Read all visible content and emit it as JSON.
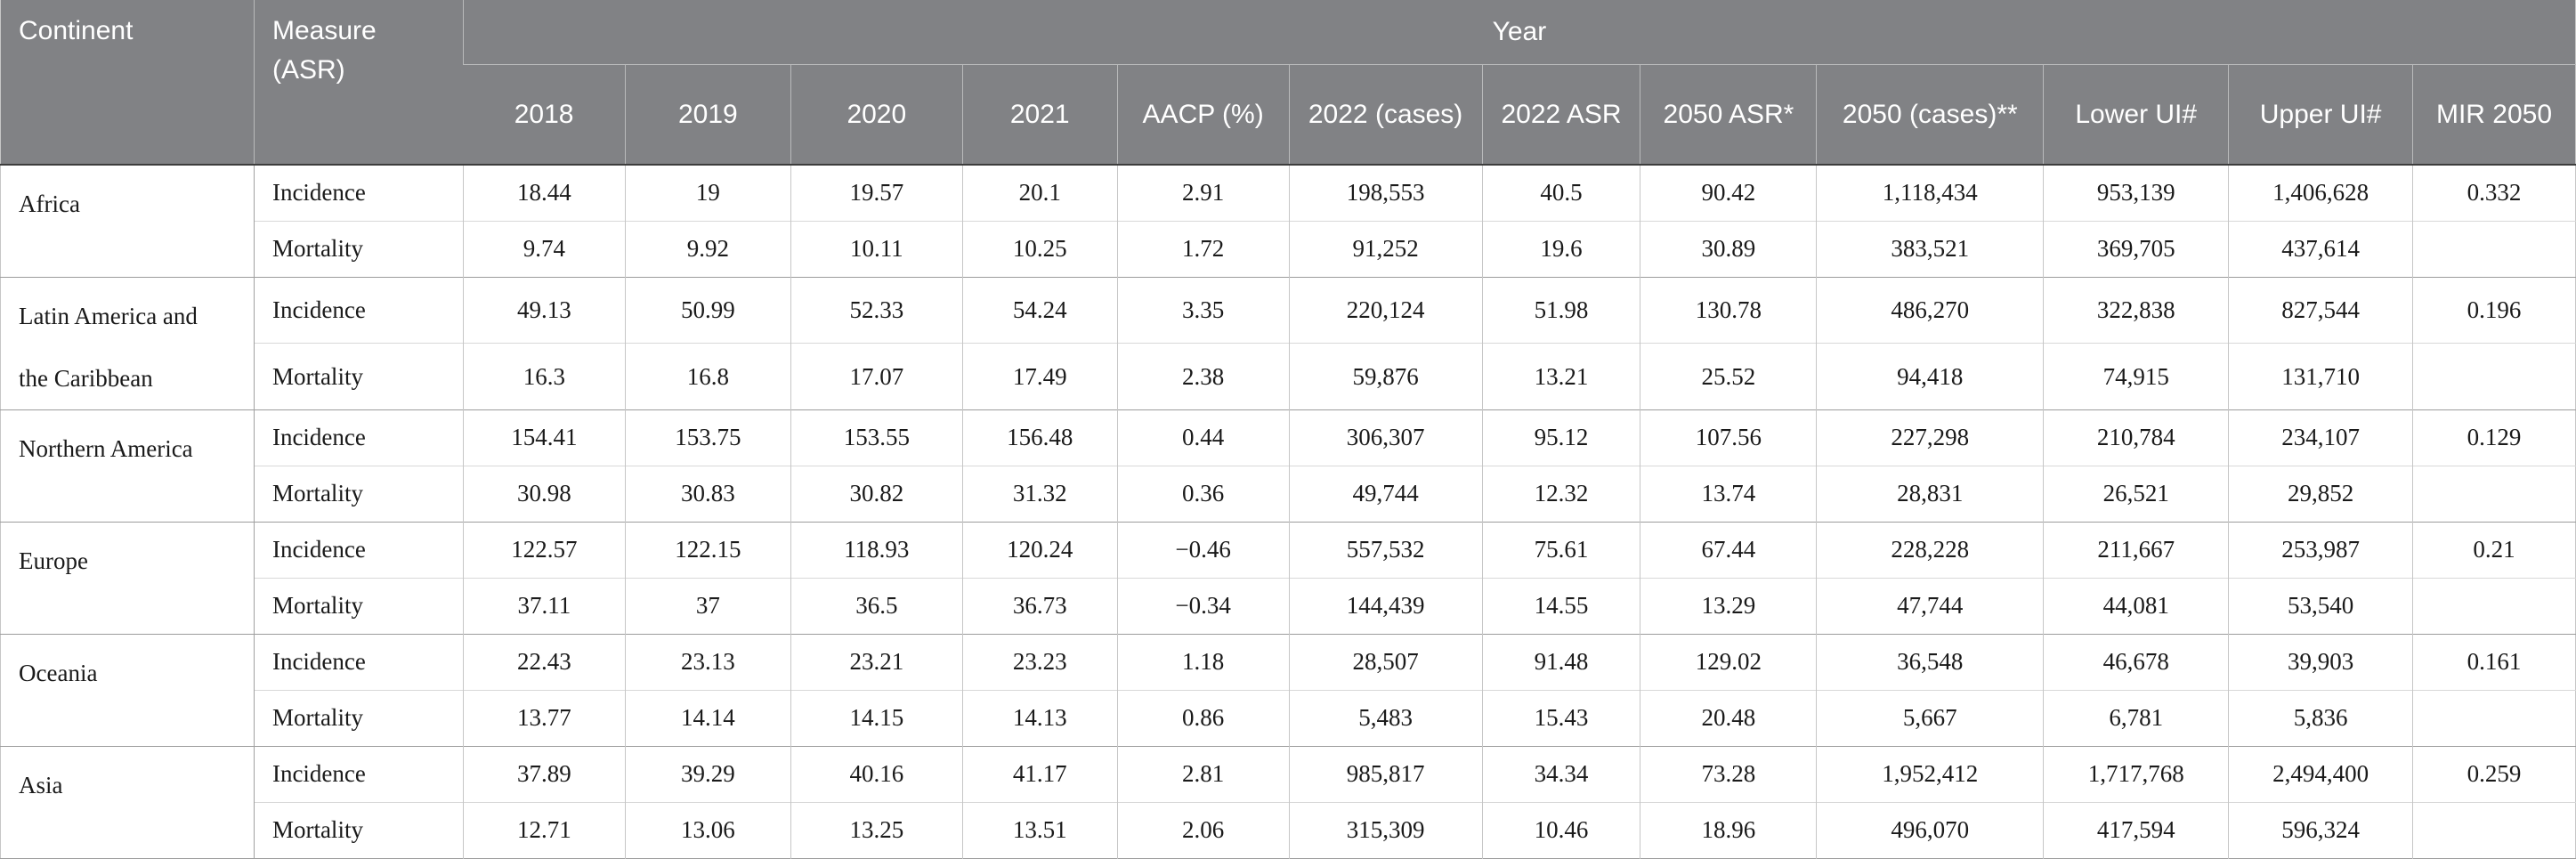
{
  "colors": {
    "header_bg": "#818285",
    "header_text": "#ffffff",
    "header_divider": "#b9babb",
    "header_bottom": "#3d3d3d",
    "body_text": "#1a1a1a",
    "grid_line": "#c6c6c6",
    "inner_line": "#d8d8d8",
    "group_line": "#9c9c9c",
    "strong_divider": "#a0a0a0"
  },
  "table": {
    "header": {
      "continent": "Continent",
      "measure": "Measure (ASR)",
      "year": "Year",
      "year_columns": [
        "2018",
        "2019",
        "2020",
        "2021",
        "AACP (%)",
        "2022 (cases)",
        "2022 ASR",
        "2050 ASR*",
        "2050 (cases)**",
        "Lower UI#",
        "Upper UI#",
        "MIR 2050"
      ]
    },
    "groups": [
      {
        "continent": "Africa",
        "rows": [
          {
            "measure": "Incidence",
            "values": [
              "18.44",
              "19",
              "19.57",
              "20.1",
              "2.91",
              "198,553",
              "40.5",
              "90.42",
              "1,118,434",
              "953,139",
              "1,406,628",
              "0.332"
            ]
          },
          {
            "measure": "Mortality",
            "values": [
              "9.74",
              "9.92",
              "10.11",
              "10.25",
              "1.72",
              "91,252",
              "19.6",
              "30.89",
              "383,521",
              "369,705",
              "437,614",
              ""
            ]
          }
        ]
      },
      {
        "continent": "Latin America and the Caribbean",
        "rows": [
          {
            "measure": "Incidence",
            "values": [
              "49.13",
              "50.99",
              "52.33",
              "54.24",
              "3.35",
              "220,124",
              "51.98",
              "130.78",
              "486,270",
              "322,838",
              "827,544",
              "0.196"
            ]
          },
          {
            "measure": "Mortality",
            "values": [
              "16.3",
              "16.8",
              "17.07",
              "17.49",
              "2.38",
              "59,876",
              "13.21",
              "25.52",
              "94,418",
              "74,915",
              "131,710",
              ""
            ]
          }
        ]
      },
      {
        "continent": "Northern America",
        "rows": [
          {
            "measure": "Incidence",
            "values": [
              "154.41",
              "153.75",
              "153.55",
              "156.48",
              "0.44",
              "306,307",
              "95.12",
              "107.56",
              "227,298",
              "210,784",
              "234,107",
              "0.129"
            ]
          },
          {
            "measure": "Mortality",
            "values": [
              "30.98",
              "30.83",
              "30.82",
              "31.32",
              "0.36",
              "49,744",
              "12.32",
              "13.74",
              "28,831",
              "26,521",
              "29,852",
              ""
            ]
          }
        ]
      },
      {
        "continent": "Europe",
        "rows": [
          {
            "measure": "Incidence",
            "values": [
              "122.57",
              "122.15",
              "118.93",
              "120.24",
              "−0.46",
              "557,532",
              "75.61",
              "67.44",
              "228,228",
              "211,667",
              "253,987",
              "0.21"
            ]
          },
          {
            "measure": "Mortality",
            "values": [
              "37.11",
              "37",
              "36.5",
              "36.73",
              "−0.34",
              "144,439",
              "14.55",
              "13.29",
              "47,744",
              "44,081",
              "53,540",
              ""
            ]
          }
        ]
      },
      {
        "continent": "Oceania",
        "rows": [
          {
            "measure": "Incidence",
            "values": [
              "22.43",
              "23.13",
              "23.21",
              "23.23",
              "1.18",
              "28,507",
              "91.48",
              "129.02",
              "36,548",
              "46,678",
              "39,903",
              "0.161"
            ]
          },
          {
            "measure": "Mortality",
            "values": [
              "13.77",
              "14.14",
              "14.15",
              "14.13",
              "0.86",
              "5,483",
              "15.43",
              "20.48",
              "5,667",
              "6,781",
              "5,836",
              ""
            ]
          }
        ]
      },
      {
        "continent": "Asia",
        "rows": [
          {
            "measure": "Incidence",
            "values": [
              "37.89",
              "39.29",
              "40.16",
              "41.17",
              "2.81",
              "985,817",
              "34.34",
              "73.28",
              "1,952,412",
              "1,717,768",
              "2,494,400",
              "0.259"
            ]
          },
          {
            "measure": "Mortality",
            "values": [
              "12.71",
              "13.06",
              "13.25",
              "13.51",
              "2.06",
              "315,309",
              "10.46",
              "18.96",
              "496,070",
              "417,594",
              "596,324",
              ""
            ]
          }
        ]
      }
    ]
  }
}
